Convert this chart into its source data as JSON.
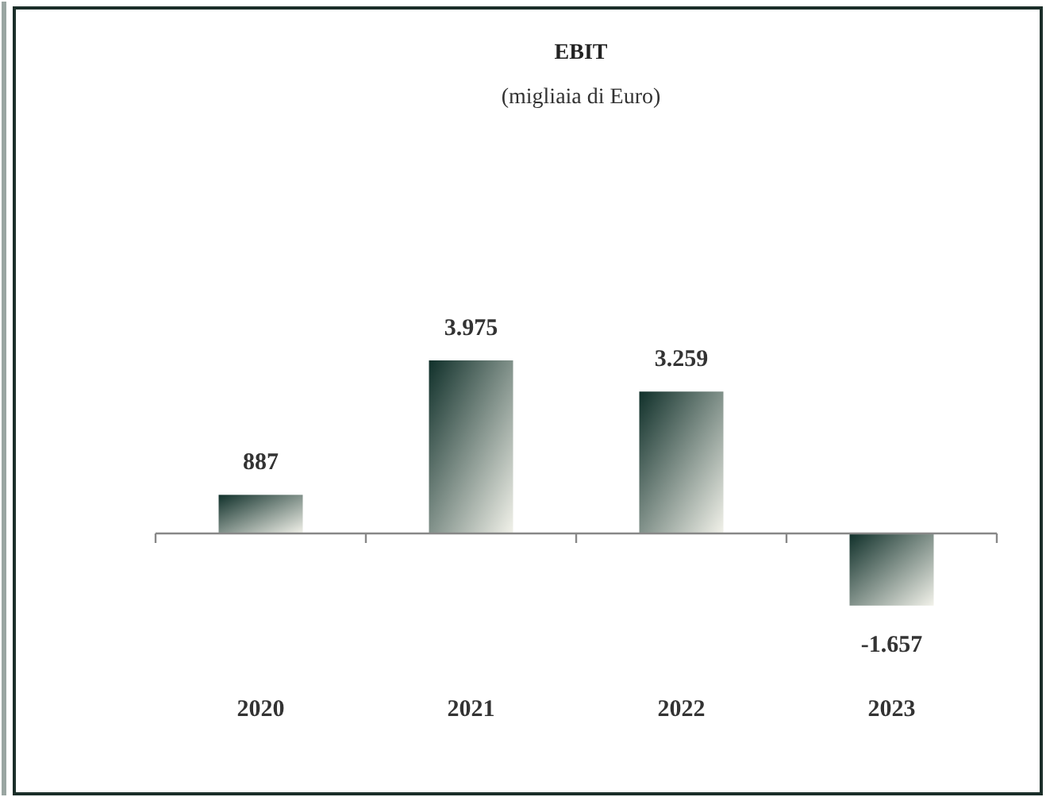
{
  "chart_data": {
    "type": "bar",
    "title": "EBIT",
    "subtitle": "(migliaia di Euro)",
    "categories": [
      "2020",
      "2021",
      "2022",
      "2023"
    ],
    "values": [
      887,
      3975,
      3259,
      -1657
    ],
    "value_labels": [
      "887",
      "3.975",
      "3.259",
      "-1.657"
    ],
    "color": "#10302a"
  }
}
